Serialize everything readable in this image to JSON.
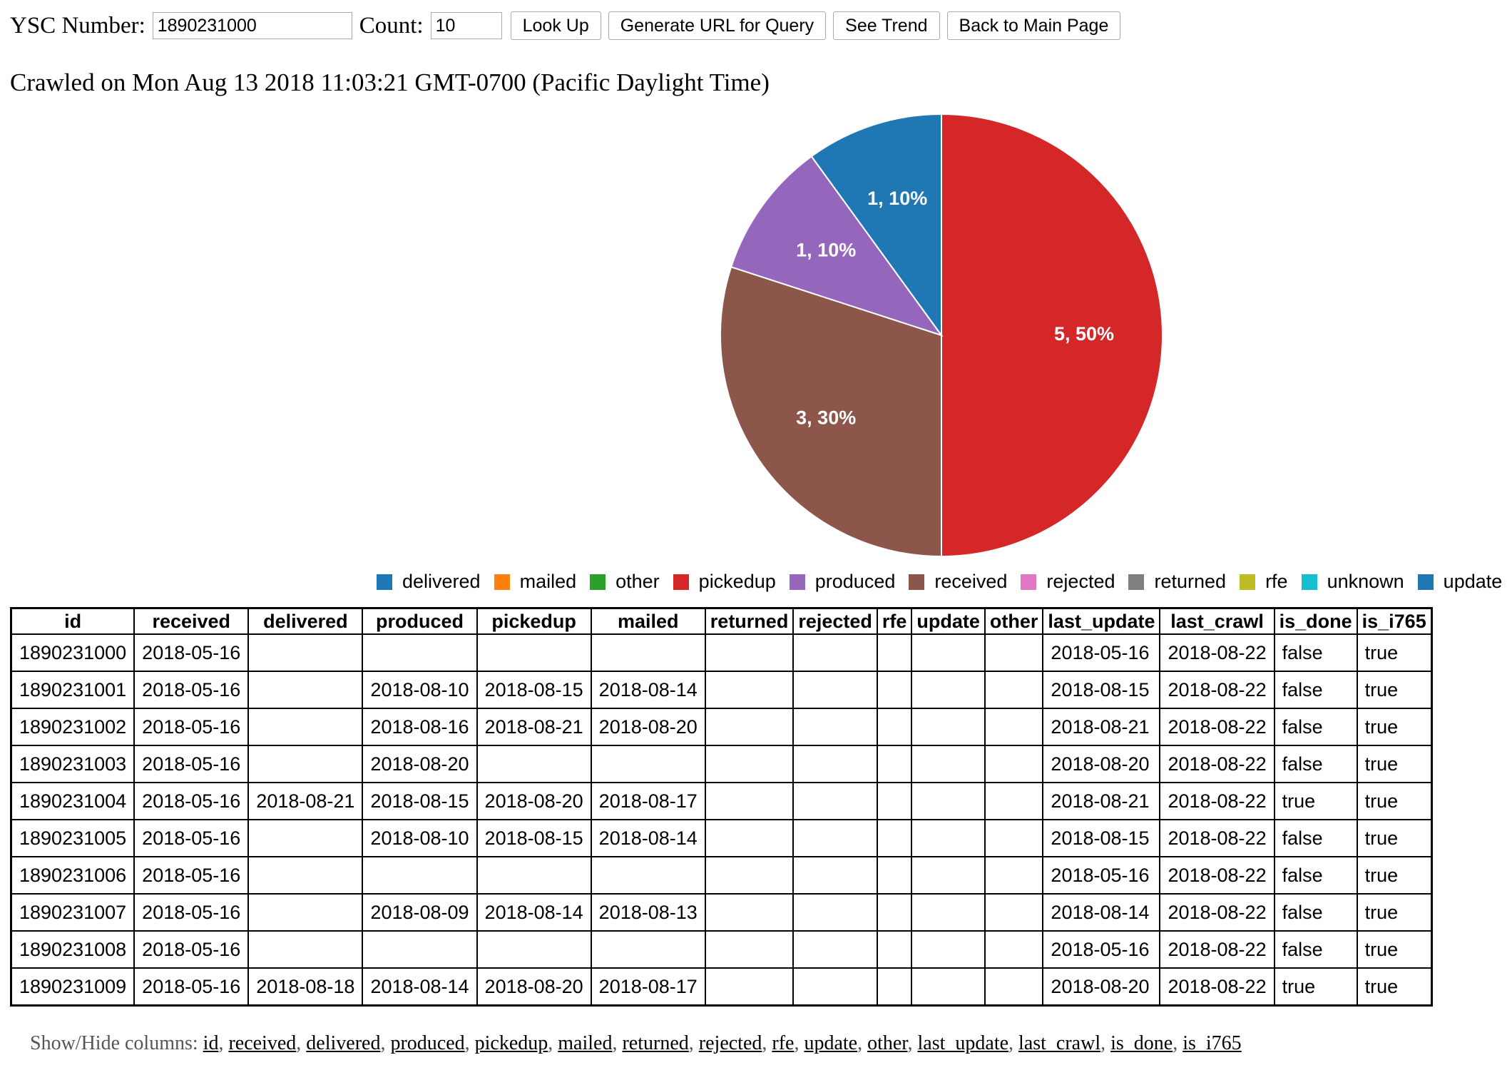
{
  "topbar": {
    "ysc_label": "YSC Number:",
    "ysc_value": "1890231000",
    "count_label": "Count:",
    "count_value": "10",
    "lookup_label": "Look Up",
    "generate_url_label": "Generate URL for Query",
    "see_trend_label": "See Trend",
    "back_label": "Back to Main Page"
  },
  "crawled_text": "Crawled on Mon Aug 13 2018 11:03:21 GMT-0700 (Pacific Daylight Time)",
  "chart_data": {
    "type": "pie",
    "slices": [
      {
        "name": "pickedup",
        "value": 5,
        "label": "5, 50%",
        "color": "#d62728"
      },
      {
        "name": "received",
        "value": 3,
        "label": "3, 30%",
        "color": "#8c564b"
      },
      {
        "name": "produced",
        "value": 1,
        "label": "1, 10%",
        "color": "#9467bd"
      },
      {
        "name": "update",
        "value": 1,
        "label": "1, 10%",
        "color": "#1f77b4"
      }
    ],
    "legend": [
      {
        "name": "delivered",
        "color": "#1f77b4"
      },
      {
        "name": "mailed",
        "color": "#ff7f0e"
      },
      {
        "name": "other",
        "color": "#2ca02c"
      },
      {
        "name": "pickedup",
        "color": "#d62728"
      },
      {
        "name": "produced",
        "color": "#9467bd"
      },
      {
        "name": "received",
        "color": "#8c564b"
      },
      {
        "name": "rejected",
        "color": "#e377c2"
      },
      {
        "name": "returned",
        "color": "#7f7f7f"
      },
      {
        "name": "rfe",
        "color": "#bcbd22"
      },
      {
        "name": "unknown",
        "color": "#17becf"
      },
      {
        "name": "update",
        "color": "#1f77b4"
      }
    ]
  },
  "table": {
    "columns": [
      "id",
      "received",
      "delivered",
      "produced",
      "pickedup",
      "mailed",
      "returned",
      "rejected",
      "rfe",
      "update",
      "other",
      "last_update",
      "last_crawl",
      "is_done",
      "is_i765"
    ],
    "rows": [
      [
        "1890231000",
        "2018-05-16",
        "",
        "",
        "",
        "",
        "",
        "",
        "",
        "",
        "",
        "2018-05-16",
        "2018-08-22",
        "false",
        "true"
      ],
      [
        "1890231001",
        "2018-05-16",
        "",
        "2018-08-10",
        "2018-08-15",
        "2018-08-14",
        "",
        "",
        "",
        "",
        "",
        "2018-08-15",
        "2018-08-22",
        "false",
        "true"
      ],
      [
        "1890231002",
        "2018-05-16",
        "",
        "2018-08-16",
        "2018-08-21",
        "2018-08-20",
        "",
        "",
        "",
        "",
        "",
        "2018-08-21",
        "2018-08-22",
        "false",
        "true"
      ],
      [
        "1890231003",
        "2018-05-16",
        "",
        "2018-08-20",
        "",
        "",
        "",
        "",
        "",
        "",
        "",
        "2018-08-20",
        "2018-08-22",
        "false",
        "true"
      ],
      [
        "1890231004",
        "2018-05-16",
        "2018-08-21",
        "2018-08-15",
        "2018-08-20",
        "2018-08-17",
        "",
        "",
        "",
        "",
        "",
        "2018-08-21",
        "2018-08-22",
        "true",
        "true"
      ],
      [
        "1890231005",
        "2018-05-16",
        "",
        "2018-08-10",
        "2018-08-15",
        "2018-08-14",
        "",
        "",
        "",
        "",
        "",
        "2018-08-15",
        "2018-08-22",
        "false",
        "true"
      ],
      [
        "1890231006",
        "2018-05-16",
        "",
        "",
        "",
        "",
        "",
        "",
        "",
        "",
        "",
        "2018-05-16",
        "2018-08-22",
        "false",
        "true"
      ],
      [
        "1890231007",
        "2018-05-16",
        "",
        "2018-08-09",
        "2018-08-14",
        "2018-08-13",
        "",
        "",
        "",
        "",
        "",
        "2018-08-14",
        "2018-08-22",
        "false",
        "true"
      ],
      [
        "1890231008",
        "2018-05-16",
        "",
        "",
        "",
        "",
        "",
        "",
        "",
        "",
        "",
        "2018-05-16",
        "2018-08-22",
        "false",
        "true"
      ],
      [
        "1890231009",
        "2018-05-16",
        "2018-08-18",
        "2018-08-14",
        "2018-08-20",
        "2018-08-17",
        "",
        "",
        "",
        "",
        "",
        "2018-08-20",
        "2018-08-22",
        "true",
        "true"
      ]
    ]
  },
  "showhide": {
    "label": "Show/Hide columns: ",
    "links": [
      "id",
      "received",
      "delivered",
      "produced",
      "pickedup",
      "mailed",
      "returned",
      "rejected",
      "rfe",
      "update",
      "other",
      "last_update",
      "last_crawl",
      "is_done",
      "is_i765"
    ]
  }
}
